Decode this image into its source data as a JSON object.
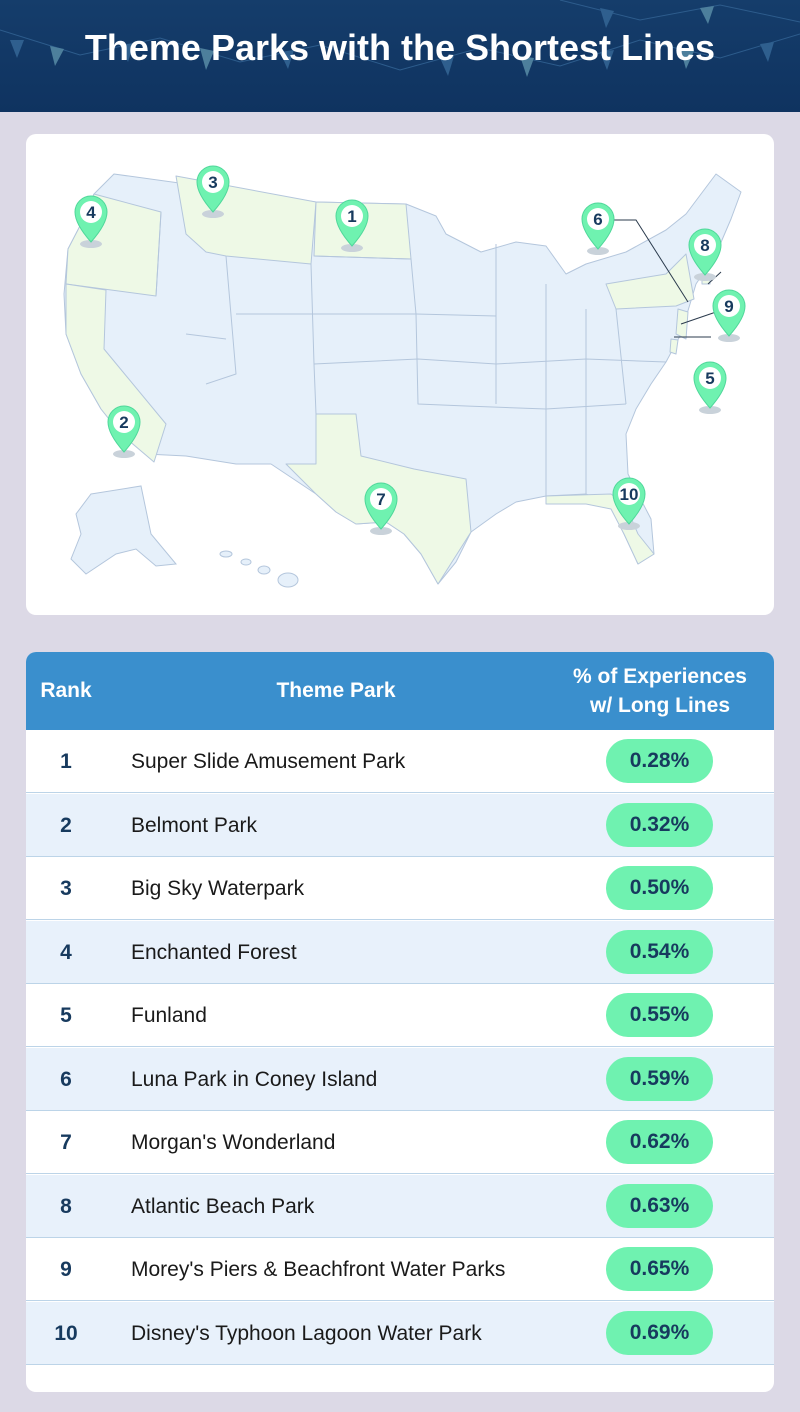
{
  "header": {
    "title": "Theme Parks with the Shortest Lines"
  },
  "colors": {
    "header_bg": "#153d6b",
    "table_header_bg": "#3a8fcd",
    "pill_bg": "#6ff2b0",
    "marker_fill": "#6ff2b0",
    "map_state": "#e6f0fa",
    "map_highlight": "#eef9e6"
  },
  "map": {
    "markers": [
      {
        "label": "1",
        "state": "North Dakota"
      },
      {
        "label": "2",
        "state": "California"
      },
      {
        "label": "3",
        "state": "Montana"
      },
      {
        "label": "4",
        "state": "Oregon"
      },
      {
        "label": "5",
        "state": "Delaware"
      },
      {
        "label": "6",
        "state": "New York"
      },
      {
        "label": "7",
        "state": "Texas"
      },
      {
        "label": "8",
        "state": "Rhode Island"
      },
      {
        "label": "9",
        "state": "New Jersey"
      },
      {
        "label": "10",
        "state": "Florida"
      }
    ]
  },
  "table": {
    "headers": {
      "rank": "Rank",
      "park": "Theme Park",
      "pct_line1": "% of Experiences",
      "pct_line2": "w/ Long Lines"
    },
    "rows": [
      {
        "rank": "1",
        "park": "Super Slide Amusement Park",
        "pct": "0.28%"
      },
      {
        "rank": "2",
        "park": "Belmont Park",
        "pct": "0.32%"
      },
      {
        "rank": "3",
        "park": "Big Sky Waterpark",
        "pct": "0.50%"
      },
      {
        "rank": "4",
        "park": "Enchanted Forest",
        "pct": "0.54%"
      },
      {
        "rank": "5",
        "park": "Funland",
        "pct": "0.55%"
      },
      {
        "rank": "6",
        "park": "Luna Park in Coney Island",
        "pct": "0.59%"
      },
      {
        "rank": "7",
        "park": "Morgan's Wonderland",
        "pct": "0.62%"
      },
      {
        "rank": "8",
        "park": "Atlantic Beach Park",
        "pct": "0.63%"
      },
      {
        "rank": "9",
        "park": "Morey's Piers & Beachfront Water Parks",
        "pct": "0.65%"
      },
      {
        "rank": "10",
        "park": "Disney's Typhoon Lagoon Water Park",
        "pct": "0.69%"
      }
    ]
  }
}
